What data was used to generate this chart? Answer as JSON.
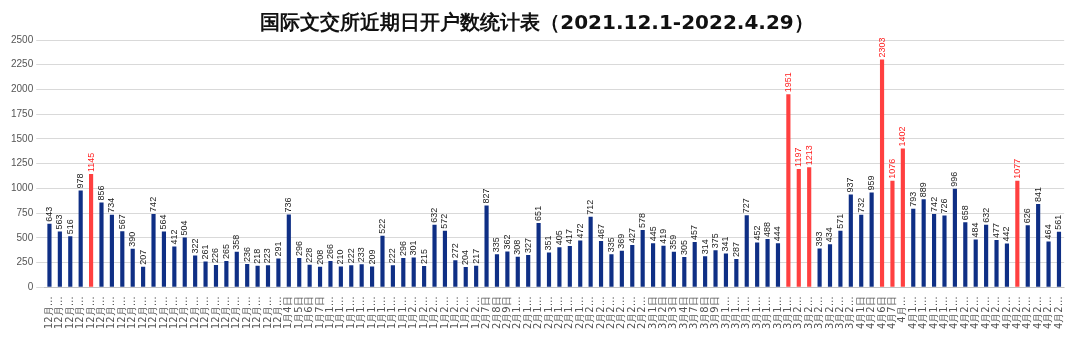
{
  "chart_data": {
    "type": "bar",
    "title": "国际文交所近期日开户数统计表（2021.12.1-2022.4.29）",
    "categories": [
      "12月…",
      "12月…",
      "12月…",
      "12月…",
      "12月…",
      "12月…",
      "12月…",
      "12月…",
      "12月…",
      "12月…",
      "12月…",
      "12月…",
      "12月…",
      "12月…",
      "12月…",
      "12月…",
      "12月…",
      "12月…",
      "12月…",
      "12月…",
      "12月…",
      "12月…",
      "12月…",
      "1月4日",
      "1月5日",
      "1月6日",
      "1月7日",
      "1月1…",
      "1月1…",
      "1月1…",
      "1月1…",
      "1月1…",
      "1月1…",
      "1月1…",
      "1月1…",
      "1月2…",
      "1月2…",
      "1月2…",
      "1月2…",
      "1月2…",
      "1月2…",
      "1月2…",
      "2月7日",
      "2月8日",
      "2月9日",
      "2月1…",
      "2月1…",
      "2月1…",
      "2月1…",
      "2月1…",
      "2月1…",
      "2月1…",
      "2月2…",
      "2月2…",
      "2月2…",
      "2月2…",
      "2月2…",
      "2月2…",
      "3月1日",
      "3月2日",
      "3月3日",
      "3月4日",
      "3月7日",
      "3月8日",
      "3月9日",
      "3月1…",
      "3月1…",
      "3月1…",
      "3月1…",
      "3月1…",
      "3月1…",
      "3月1…",
      "3月2…",
      "3月2…",
      "3月2…",
      "3月2…",
      "3月2…",
      "3月2…",
      "4月1日",
      "4月2日",
      "4月6日",
      "4月7日",
      "4月…",
      "4月1…",
      "4月1…",
      "4月1…",
      "4月1…",
      "4月1…",
      "4月2…",
      "4月2…",
      "4月2…",
      "4月2…",
      "4月2…",
      "4月2…",
      "4月2…",
      "4月2…",
      "4月2…",
      "4月2…"
    ],
    "values": [
      643,
      563,
      516,
      978,
      1145,
      856,
      734,
      567,
      390,
      207,
      742,
      564,
      412,
      504,
      322,
      261,
      226,
      265,
      358,
      236,
      218,
      223,
      291,
      736,
      296,
      228,
      208,
      266,
      210,
      222,
      233,
      209,
      522,
      222,
      296,
      301,
      215,
      632,
      572,
      272,
      204,
      217,
      827,
      335,
      362,
      308,
      327,
      651,
      351,
      405,
      417,
      472,
      712,
      467,
      335,
      369,
      427,
      578,
      445,
      419,
      359,
      305,
      457,
      314,
      375,
      341,
      287,
      727,
      452,
      488,
      444,
      1951,
      1197,
      1213,
      393,
      434,
      571,
      937,
      732,
      959,
      2303,
      1076,
      1402,
      793,
      889,
      742,
      726,
      996,
      658,
      484,
      632,
      477,
      442,
      1077,
      626,
      841,
      464,
      561
    ],
    "colors": [
      "#0f2f85",
      "#0f2f85",
      "#0f2f85",
      "#0f2f85",
      "#ff4040",
      "#0f2f85",
      "#0f2f85",
      "#0f2f85",
      "#0f2f85",
      "#0f2f85",
      "#0f2f85",
      "#0f2f85",
      "#0f2f85",
      "#0f2f85",
      "#0f2f85",
      "#0f2f85",
      "#0f2f85",
      "#0f2f85",
      "#0f2f85",
      "#0f2f85",
      "#0f2f85",
      "#0f2f85",
      "#0f2f85",
      "#0f2f85",
      "#0f2f85",
      "#0f2f85",
      "#0f2f85",
      "#0f2f85",
      "#0f2f85",
      "#0f2f85",
      "#0f2f85",
      "#0f2f85",
      "#0f2f85",
      "#0f2f85",
      "#0f2f85",
      "#0f2f85",
      "#0f2f85",
      "#0f2f85",
      "#0f2f85",
      "#0f2f85",
      "#0f2f85",
      "#0f2f85",
      "#0f2f85",
      "#0f2f85",
      "#0f2f85",
      "#0f2f85",
      "#0f2f85",
      "#0f2f85",
      "#0f2f85",
      "#0f2f85",
      "#0f2f85",
      "#0f2f85",
      "#0f2f85",
      "#0f2f85",
      "#0f2f85",
      "#0f2f85",
      "#0f2f85",
      "#0f2f85",
      "#0f2f85",
      "#0f2f85",
      "#0f2f85",
      "#0f2f85",
      "#0f2f85",
      "#0f2f85",
      "#0f2f85",
      "#0f2f85",
      "#0f2f85",
      "#0f2f85",
      "#0f2f85",
      "#0f2f85",
      "#0f2f85",
      "#ff4040",
      "#ff4040",
      "#ff4040",
      "#0f2f85",
      "#0f2f85",
      "#0f2f85",
      "#0f2f85",
      "#0f2f85",
      "#0f2f85",
      "#ff4040",
      "#ff4040",
      "#ff4040",
      "#0f2f85",
      "#0f2f85",
      "#0f2f85",
      "#0f2f85",
      "#0f2f85",
      "#0f2f85",
      "#0f2f85",
      "#0f2f85",
      "#0f2f85",
      "#0f2f85",
      "#ff4040",
      "#0f2f85",
      "#0f2f85",
      "#0f2f85",
      "#0f2f85"
    ],
    "ylim": [
      0,
      2500
    ],
    "yticks": [
      0,
      250,
      500,
      750,
      1000,
      1250,
      1500,
      1750,
      2000,
      2250,
      2500
    ],
    "grid": "y",
    "legend": false,
    "data_labels": true
  }
}
